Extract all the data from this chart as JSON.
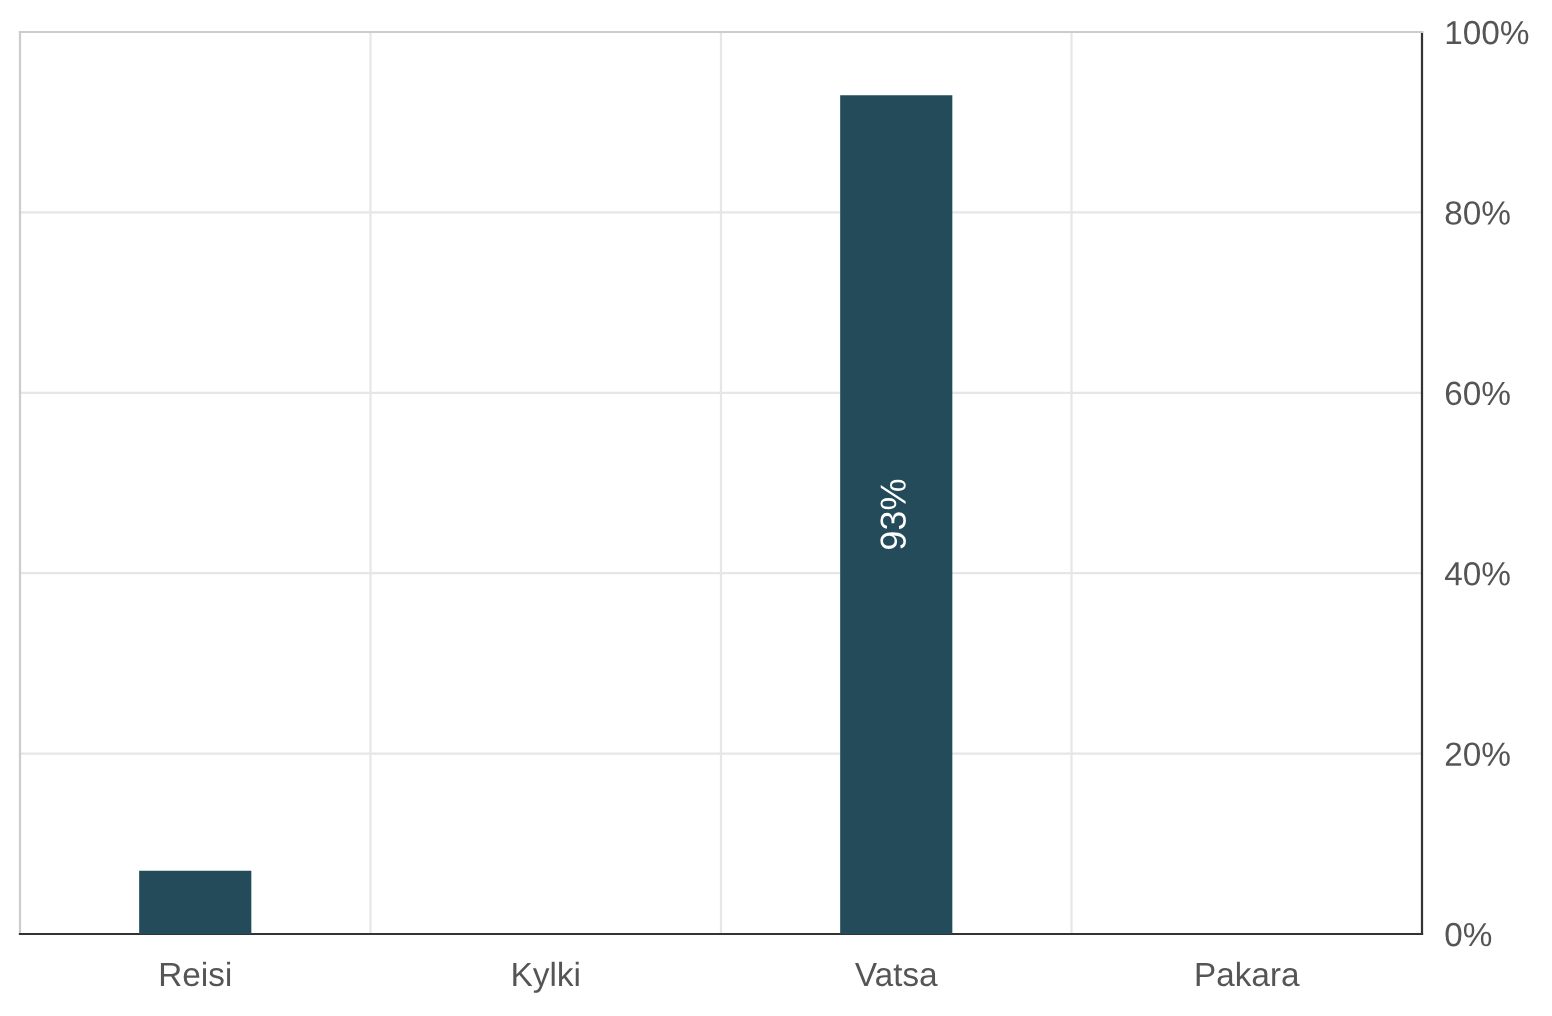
{
  "chart_data": {
    "type": "bar",
    "categories": [
      "Reisi",
      "Kylki",
      "Vatsa",
      "Pakara"
    ],
    "values": [
      7,
      0,
      93,
      0
    ],
    "color": "#234b5a",
    "value_labels": [
      null,
      null,
      "93%",
      null
    ],
    "ylim": [
      0,
      100
    ],
    "yticks": [
      {
        "value": 0,
        "label": "0%"
      },
      {
        "value": 20,
        "label": "20%"
      },
      {
        "value": 40,
        "label": "40%"
      },
      {
        "value": 60,
        "label": "60%"
      },
      {
        "value": 80,
        "label": "80%"
      },
      {
        "value": 100,
        "label": "100%"
      }
    ],
    "grid": true,
    "legend": false
  }
}
